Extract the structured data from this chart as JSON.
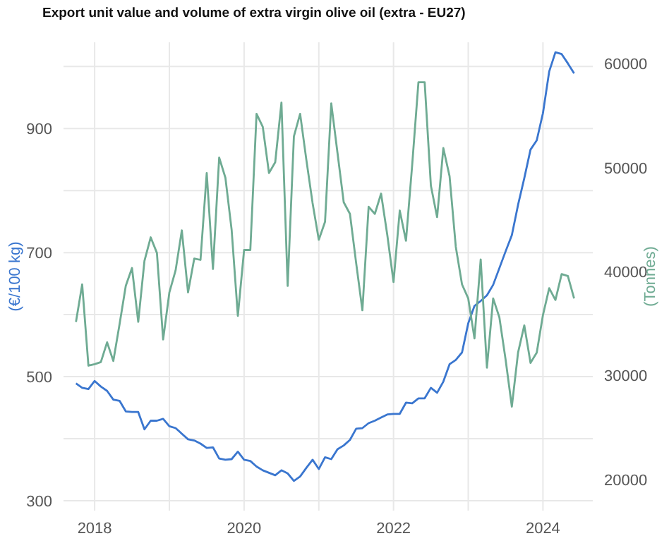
{
  "chart_data": {
    "type": "line",
    "title": "Export unit value and volume of extra virgin olive oil (extra - EU27)",
    "ylabel": "(€/100 kg)",
    "y2label": "(Tonnes)",
    "x": [
      "2017-10",
      "2017-11",
      "2017-12",
      "2018-01",
      "2018-02",
      "2018-03",
      "2018-04",
      "2018-05",
      "2018-06",
      "2018-07",
      "2018-08",
      "2018-09",
      "2018-10",
      "2018-11",
      "2018-12",
      "2019-01",
      "2019-02",
      "2019-03",
      "2019-04",
      "2019-05",
      "2019-06",
      "2019-07",
      "2019-08",
      "2019-09",
      "2019-10",
      "2019-11",
      "2019-12",
      "2020-01",
      "2020-02",
      "2020-03",
      "2020-04",
      "2020-05",
      "2020-06",
      "2020-07",
      "2020-08",
      "2020-09",
      "2020-10",
      "2020-11",
      "2020-12",
      "2021-01",
      "2021-02",
      "2021-03",
      "2021-04",
      "2021-05",
      "2021-06",
      "2021-07",
      "2021-08",
      "2021-09",
      "2021-10",
      "2021-11",
      "2021-12",
      "2022-01",
      "2022-02",
      "2022-03",
      "2022-04",
      "2022-05",
      "2022-06",
      "2022-07",
      "2022-08",
      "2022-09",
      "2022-10",
      "2022-11",
      "2022-12",
      "2023-01",
      "2023-02",
      "2023-03",
      "2023-04",
      "2023-05",
      "2023-06",
      "2023-07",
      "2023-08",
      "2023-09",
      "2023-10",
      "2023-11",
      "2023-12",
      "2024-01",
      "2024-02",
      "2024-03",
      "2024-04",
      "2024-05",
      "2024-06"
    ],
    "series": [
      {
        "color": "#3a76cf",
        "values": [
          489,
          482,
          480,
          493,
          484,
          477,
          463,
          461,
          444,
          443,
          443,
          415,
          429,
          429,
          432,
          420,
          417,
          408,
          399,
          397,
          392,
          385,
          386,
          368,
          366,
          367,
          379,
          366,
          364,
          355,
          349,
          345,
          341,
          349,
          344,
          332,
          339,
          353,
          366,
          351,
          370,
          367,
          383,
          389,
          398,
          416,
          417,
          425,
          429,
          434,
          439,
          440,
          440,
          458,
          457,
          465,
          465,
          482,
          474,
          492,
          520,
          527,
          539,
          586,
          614,
          622,
          631,
          648,
          675,
          702,
          728,
          777,
          820,
          866,
          881,
          925,
          992,
          1023,
          1020,
          1005,
          989
        ]
      },
      {
        "color": "#6fab93",
        "axis": "y2",
        "values": [
          35160,
          38770,
          30950,
          31090,
          31300,
          33200,
          31400,
          34930,
          38630,
          40350,
          35160,
          41030,
          43300,
          41800,
          33470,
          38000,
          40120,
          43970,
          38000,
          41260,
          41130,
          49490,
          40260,
          50980,
          49040,
          44020,
          35740,
          42080,
          42080,
          55190,
          53930,
          49490,
          50530,
          56270,
          38630,
          53020,
          55190,
          50760,
          46600,
          43070,
          44790,
          56190,
          51430,
          46680,
          45560,
          40820,
          36280,
          46240,
          45560,
          47510,
          43520,
          39000,
          45880,
          42970,
          50300,
          58230,
          58230,
          48270,
          45240,
          51890,
          49180,
          42390,
          38770,
          37420,
          33570,
          41170,
          30760,
          37420,
          35600,
          31530,
          27010,
          32210,
          34830,
          31220,
          32210,
          35830,
          38410,
          37270,
          39760,
          39580,
          37420
        ]
      }
    ],
    "xlim": [
      "2017-08",
      "2024-09"
    ],
    "xticks": [
      {
        "value": "2018",
        "label": "2018"
      },
      {
        "value": "2019",
        "label": null
      },
      {
        "value": "2020",
        "label": "2020"
      },
      {
        "value": "2021",
        "label": null
      },
      {
        "value": "2022",
        "label": "2022"
      },
      {
        "value": "2023",
        "label": null
      },
      {
        "value": "2024",
        "label": "2024"
      }
    ],
    "ylim": [
      284,
      1039
    ],
    "yticks": [
      300,
      {
        "value": 400,
        "label": null
      },
      500,
      {
        "value": 600,
        "label": null
      },
      700,
      {
        "value": 800,
        "label": null
      },
      900,
      {
        "value": 1000,
        "label": null
      }
    ],
    "y2lim": [
      17000,
      62070
    ],
    "y2ticks": [
      20000,
      30000,
      40000,
      50000,
      60000
    ],
    "grid": true,
    "legend": false,
    "marker": "none",
    "line_style": "solid"
  }
}
